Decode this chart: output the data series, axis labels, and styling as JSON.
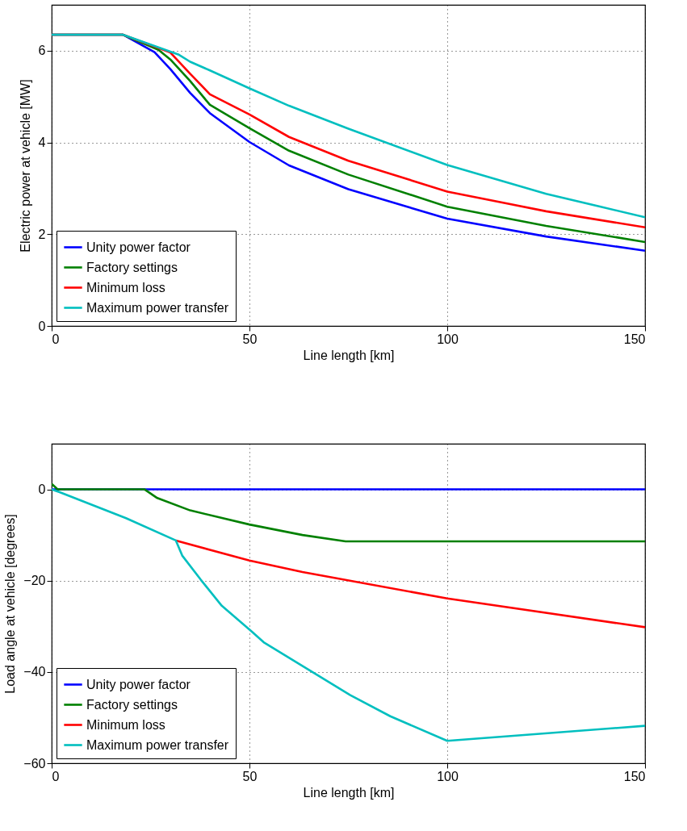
{
  "chart_data": [
    {
      "type": "line",
      "xlabel": "Line length [km]",
      "ylabel": "Electric power at vehicle [MW]",
      "xlim": [
        0,
        150
      ],
      "xticks": [
        0,
        50,
        100,
        150
      ],
      "ylim": [
        0,
        7
      ],
      "yticks": [
        0,
        2,
        4,
        6
      ],
      "grid": true,
      "legend": "bottom left",
      "marker": "none",
      "line_style": "solid",
      "series": [
        {
          "name": "Unity power factor",
          "color": "#0000ff",
          "x": [
            0,
            18,
            26,
            30,
            35,
            40,
            50,
            60,
            75,
            100,
            125,
            150
          ],
          "values": [
            6.35,
            6.35,
            5.97,
            5.6,
            5.08,
            4.64,
            4.01,
            3.5,
            2.98,
            2.34,
            1.95,
            1.64
          ]
        },
        {
          "name": "Factory settings",
          "color": "#008000",
          "x": [
            0,
            18,
            27,
            30,
            35,
            40,
            50,
            60,
            75,
            100,
            125,
            150
          ],
          "values": [
            6.35,
            6.35,
            6.02,
            5.81,
            5.34,
            4.82,
            4.31,
            3.82,
            3.3,
            2.6,
            2.18,
            1.83
          ]
        },
        {
          "name": "Minimum loss",
          "color": "#ff0000",
          "x": [
            0,
            18,
            30,
            35,
            40,
            50,
            60,
            75,
            100,
            125,
            150
          ],
          "values": [
            6.35,
            6.35,
            5.96,
            5.5,
            5.05,
            4.61,
            4.12,
            3.6,
            2.93,
            2.5,
            2.15
          ]
        },
        {
          "name": "Maximum power transfer",
          "color": "#00bfbf",
          "x": [
            0,
            18,
            32,
            35,
            40,
            50,
            60,
            75,
            100,
            125,
            150
          ],
          "values": [
            6.35,
            6.35,
            5.92,
            5.76,
            5.57,
            5.18,
            4.8,
            4.3,
            3.51,
            2.88,
            2.37
          ]
        }
      ]
    },
    {
      "type": "line",
      "xlabel": "Line length [km]",
      "ylabel": "Load angle at vehicle [degrees]",
      "xlim": [
        0,
        150
      ],
      "xticks": [
        0,
        50,
        100,
        150
      ],
      "ylim": [
        -60,
        10
      ],
      "yticks": [
        -60,
        -40,
        -20,
        0
      ],
      "grid": true,
      "legend": "bottom left",
      "marker": "none",
      "line_style": "solid",
      "series": [
        {
          "name": "Unity power factor",
          "color": "#0000ff",
          "x": [
            0,
            150
          ],
          "values": [
            0,
            0
          ]
        },
        {
          "name": "Factory settings",
          "color": "#008000",
          "x": [
            0,
            1.5,
            23.5,
            26.7,
            35,
            50,
            63.4,
            74.3,
            150
          ],
          "values": [
            1.2,
            0,
            0,
            -1.9,
            -4.6,
            -7.7,
            -10,
            -11.4,
            -11.4
          ]
        },
        {
          "name": "Minimum loss",
          "color": "#ff0000",
          "x": [
            31.4,
            50,
            63.4,
            100,
            150
          ],
          "values": [
            -11.2,
            -15.6,
            -18.1,
            -23.9,
            -30.2
          ]
        },
        {
          "name": "Maximum power transfer",
          "color": "#00bfbf",
          "x": [
            0,
            2,
            18.8,
            31.4,
            33,
            37.7,
            43,
            50.4,
            53.6,
            75.5,
            85.6,
            100,
            150
          ],
          "values": [
            0,
            -0.6,
            -6.3,
            -11.2,
            -14.5,
            -19.8,
            -25.5,
            -31,
            -33.5,
            -45.1,
            -49.7,
            -55.1,
            -51.8
          ]
        }
      ]
    }
  ]
}
